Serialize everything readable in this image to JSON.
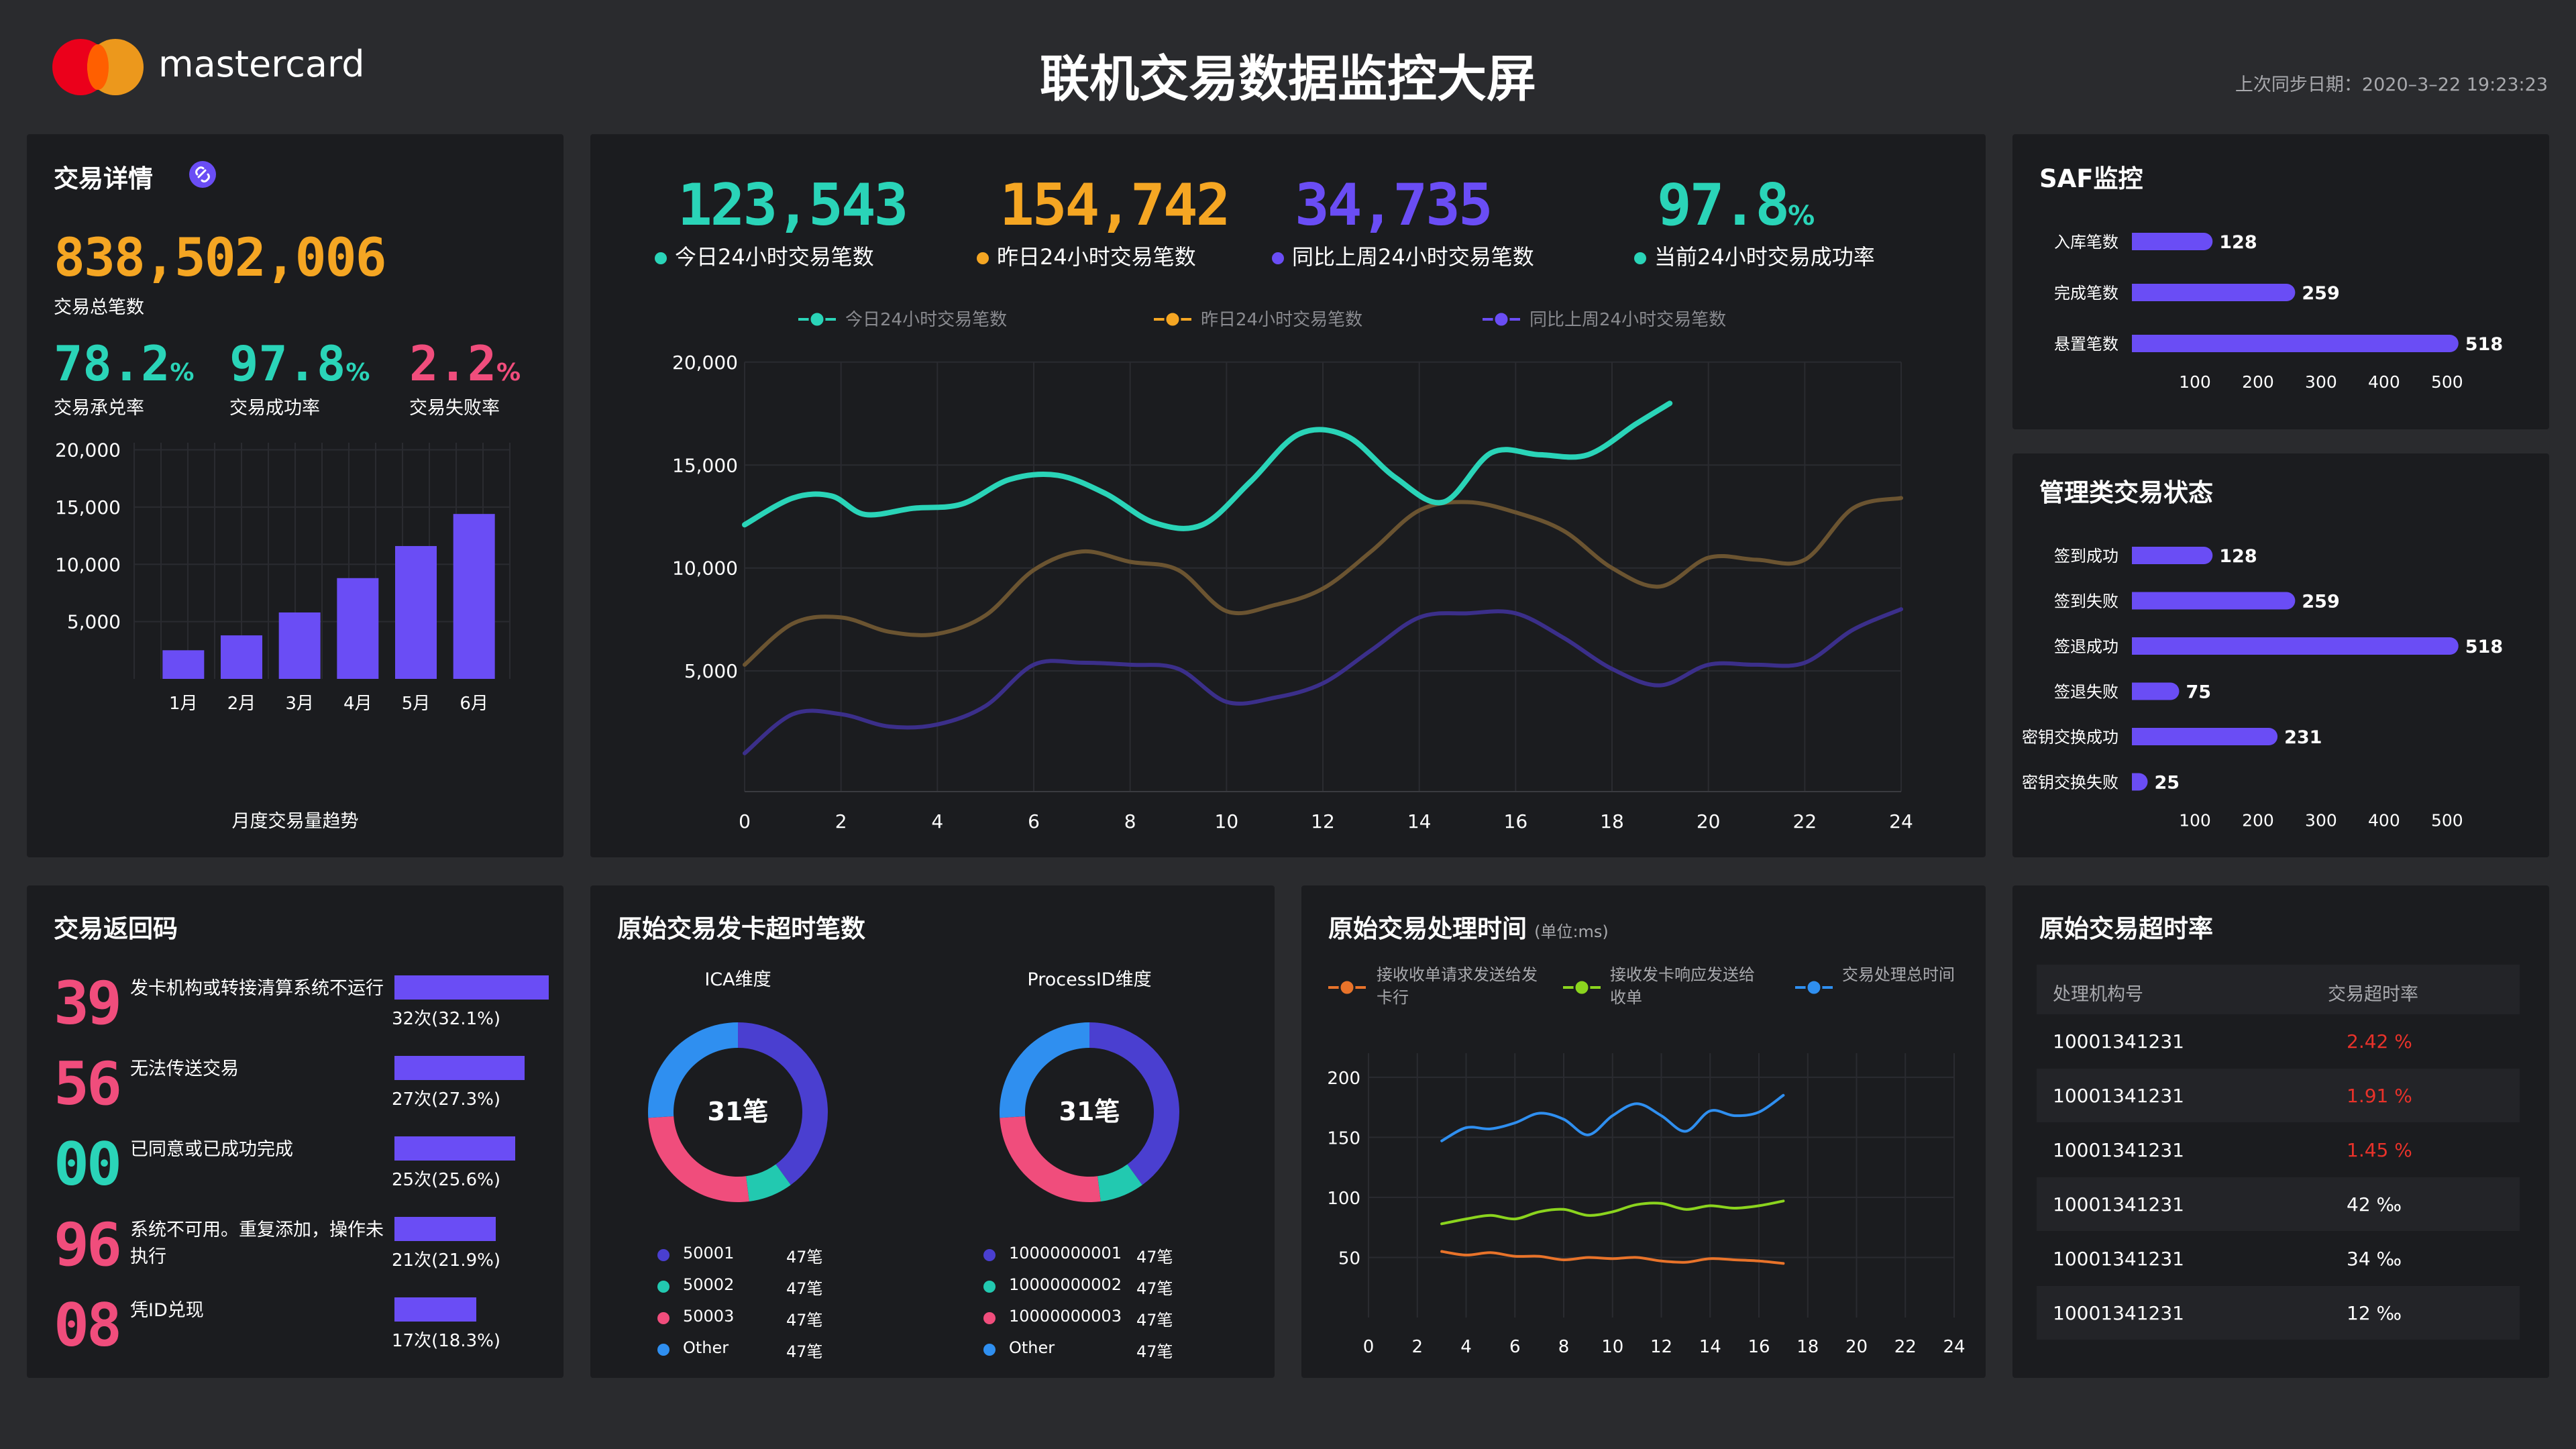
{
  "header": {
    "brand": "mastercard",
    "title": "联机交易数据监控大屏",
    "sync_label": "上次同步日期：",
    "sync_time": "2020–3–22 19:23:23",
    "colors": {
      "logo_red": "#eb001b",
      "logo_orange": "#f79e1b"
    }
  },
  "details": {
    "title": "交易详情",
    "total_value": "838,502,006",
    "total_label": "交易总笔数",
    "metrics": [
      {
        "value": "78.2",
        "unit": "%",
        "label": "交易承兑率",
        "color": "#2ad4b8"
      },
      {
        "value": "97.8",
        "unit": "%",
        "label": "交易成功率",
        "color": "#2ad4b8"
      },
      {
        "value": "2.2",
        "unit": "%",
        "label": "交易失败率",
        "color": "#f04d7c"
      }
    ]
  },
  "monthly_chart": {
    "caption": "月度交易量趋势",
    "chart_data": {
      "type": "bar",
      "categories": [
        "1月",
        "2月",
        "3月",
        "4月",
        "5月",
        "6月"
      ],
      "values": [
        2500,
        3800,
        5800,
        8800,
        11600,
        14400
      ],
      "yticks": [
        "20,000",
        "15,000",
        "10,000",
        "5,000"
      ],
      "ylim": [
        0,
        20000
      ]
    }
  },
  "kpis": [
    {
      "value": "123,543",
      "unit": "",
      "label": "今日24小时交易笔数",
      "color": "#2ad4b8"
    },
    {
      "value": "154,742",
      "unit": "",
      "label": "昨日24小时交易笔数",
      "color": "#f5a623"
    },
    {
      "value": "34,735",
      "unit": "",
      "label": "同比上周24小时交易笔数",
      "color": "#6a4df5"
    },
    {
      "value": "97.8",
      "unit": "%",
      "label": "当前24小时交易成功率",
      "color": "#2ad4b8"
    }
  ],
  "line_chart": {
    "legend": [
      "今日24小时交易笔数",
      "昨日24小时交易笔数",
      "同比上周24小时交易笔数"
    ],
    "chart_data": {
      "type": "line",
      "xticks": [
        "0",
        "2",
        "4",
        "6",
        "8",
        "10",
        "12",
        "14",
        "16",
        "18",
        "20",
        "22",
        "24"
      ],
      "yticks": [
        "20,000",
        "15,000",
        "10,000",
        "5,000"
      ],
      "xlim": [
        0,
        24
      ],
      "ylim": [
        0,
        20000
      ],
      "series": [
        {
          "name": "今日24小时交易笔数",
          "color": "#2ad4b8",
          "x": [
            0,
            1,
            1.8,
            2.5,
            3.5,
            4.5,
            5.5,
            6.5,
            7.5,
            8.5,
            9.5,
            10.5,
            11.5,
            12.5,
            13.5,
            14.5,
            15.5,
            16.5,
            17.5,
            18.5,
            19.2
          ],
          "y": [
            12100,
            13400,
            13500,
            12600,
            12900,
            13100,
            14300,
            14500,
            13600,
            12200,
            12100,
            14200,
            16500,
            16400,
            14400,
            13200,
            15600,
            15500,
            15500,
            17000,
            18000
          ]
        },
        {
          "name": "昨日24小时交易笔数",
          "color": "#6b5431",
          "x": [
            0,
            1,
            2,
            3,
            4,
            5,
            6,
            7,
            8,
            9,
            10,
            11,
            12,
            13,
            14,
            15,
            16,
            17,
            18,
            19,
            20,
            21,
            22,
            23,
            24
          ],
          "y": [
            5300,
            7300,
            7600,
            6900,
            6800,
            7700,
            9900,
            10800,
            10300,
            9900,
            7900,
            8200,
            9000,
            10800,
            12800,
            13200,
            12700,
            11800,
            10000,
            9100,
            10500,
            10400,
            10400,
            12900,
            13400
          ]
        },
        {
          "name": "同比上周24小时交易笔数",
          "color": "#3b2f8a",
          "x": [
            0,
            1,
            2,
            3,
            4,
            5,
            6,
            7,
            8,
            9,
            10,
            11,
            12,
            13,
            14,
            15,
            16,
            17,
            18,
            19,
            20,
            21,
            22,
            23,
            24
          ],
          "y": [
            1000,
            2900,
            2900,
            2300,
            2400,
            3300,
            5300,
            5400,
            5300,
            5100,
            3500,
            3700,
            4400,
            6000,
            7600,
            7800,
            7800,
            6600,
            5100,
            4300,
            5300,
            5300,
            5400,
            7000,
            8000
          ]
        }
      ]
    }
  },
  "saf": {
    "title": "SAF监控",
    "chart_data": {
      "type": "bar",
      "categories": [
        "入库笔数",
        "完成笔数",
        "悬置笔数"
      ],
      "values": [
        128,
        259,
        518
      ],
      "xticks": [
        "100",
        "200",
        "300",
        "400",
        "500"
      ],
      "xlim": [
        0,
        500
      ]
    }
  },
  "mgmt": {
    "title": "管理类交易状态",
    "chart_data": {
      "type": "bar",
      "categories": [
        "签到成功",
        "签到失败",
        "签退成功",
        "签退失败",
        "密钥交换成功",
        "密钥交换失败"
      ],
      "values": [
        128,
        259,
        518,
        75,
        231,
        25
      ],
      "xticks": [
        "100",
        "200",
        "300",
        "400",
        "500"
      ],
      "xlim": [
        0,
        500
      ]
    }
  },
  "return_codes": {
    "title": "交易返回码",
    "items": [
      {
        "code": "39",
        "desc": "发卡机构或转接清算系统不运行",
        "count": "32次(32.1%)",
        "value": 32
      },
      {
        "code": "56",
        "desc": "无法传送交易",
        "count": "27次(27.3%)",
        "value": 27
      },
      {
        "code": "00",
        "desc": "已同意或已成功完成",
        "count": "25次(25.6%)",
        "value": 25
      },
      {
        "code": "96",
        "desc": "系统不可用。重复添加，操作未执行",
        "count": "21次(21.9%)",
        "value": 21
      },
      {
        "code": "08",
        "desc": "凭ID兑现",
        "count": "17次(18.3%)",
        "value": 17
      }
    ],
    "colors": {
      "code_pink": "#f04d7c",
      "code_teal": "#2ad4b8"
    }
  },
  "timeouts": {
    "title": "原始交易发卡超时笔数",
    "charts": [
      {
        "title": "ICA维度",
        "center": "31笔",
        "legend": [
          {
            "name": "50001",
            "count": "47笔"
          },
          {
            "name": "50002",
            "count": "47笔"
          },
          {
            "name": "50003",
            "count": "47笔"
          },
          {
            "name": "Other",
            "count": "47笔"
          }
        ],
        "chart_data": {
          "type": "pie",
          "labels": [
            "50001",
            "50002",
            "50003",
            "Other"
          ],
          "values": [
            40,
            8,
            26,
            26
          ]
        }
      },
      {
        "title": "ProcessID维度",
        "center": "31笔",
        "legend": [
          {
            "name": "10000000001",
            "count": "47笔"
          },
          {
            "name": "10000000002",
            "count": "47笔"
          },
          {
            "name": "10000000003",
            "count": "47笔"
          },
          {
            "name": "Other",
            "count": "47笔"
          }
        ],
        "chart_data": {
          "type": "pie",
          "labels": [
            "10000000001",
            "10000000002",
            "10000000003",
            "Other"
          ],
          "values": [
            40,
            8,
            26,
            26
          ]
        }
      }
    ],
    "colors": [
      "#4a3fd0",
      "#22c9b0",
      "#f04d7c",
      "#2f8ff0"
    ]
  },
  "proc_time": {
    "title": "原始交易处理时间",
    "unit": "(单位:ms)",
    "legend": [
      "接收收单请求发送给发卡行",
      "接收发卡响应发送给收单",
      "交易处理总时间"
    ],
    "chart_data": {
      "type": "line",
      "xticks": [
        "0",
        "2",
        "4",
        "6",
        "8",
        "10",
        "12",
        "14",
        "16",
        "18",
        "20",
        "22",
        "24"
      ],
      "yticks": [
        "200",
        "150",
        "100",
        "50"
      ],
      "xlim": [
        0,
        24
      ],
      "ylim": [
        0,
        200
      ],
      "series": [
        {
          "name": "接收收单请求发送给发卡行",
          "color": "#e8732a",
          "x": [
            3,
            4,
            5,
            6,
            7,
            8,
            9,
            10,
            11,
            12,
            13,
            14,
            15,
            16,
            17
          ],
          "y": [
            55,
            52,
            54,
            51,
            51,
            48,
            50,
            49,
            50,
            47,
            46,
            49,
            48,
            47,
            45
          ]
        },
        {
          "name": "接收发卡响应发送给收单",
          "color": "#8bd41e",
          "x": [
            3,
            4,
            5,
            6,
            7,
            8,
            9,
            10,
            11,
            12,
            13,
            14,
            15,
            16,
            17
          ],
          "y": [
            78,
            82,
            85,
            82,
            88,
            90,
            85,
            88,
            94,
            95,
            90,
            93,
            91,
            93,
            97
          ]
        },
        {
          "name": "交易处理总时间",
          "color": "#2f8ff0",
          "x": [
            3,
            4,
            5,
            6,
            7,
            8,
            9,
            10,
            11,
            12,
            13,
            14,
            15,
            16,
            17
          ],
          "y": [
            147,
            158,
            157,
            162,
            170,
            165,
            152,
            168,
            178,
            168,
            155,
            172,
            168,
            171,
            185
          ]
        }
      ]
    }
  },
  "timeout_rate": {
    "title": "原始交易超时率",
    "headers": [
      "处理机构号",
      "交易超时率"
    ],
    "rows": [
      {
        "org": "10001341231",
        "rate": "2.42 %",
        "alert": true
      },
      {
        "org": "10001341231",
        "rate": "1.91 %",
        "alert": true
      },
      {
        "org": "10001341231",
        "rate": "1.45 %",
        "alert": true
      },
      {
        "org": "10001341231",
        "rate": "42 ‰",
        "alert": false
      },
      {
        "org": "10001341231",
        "rate": "34 ‰",
        "alert": false
      },
      {
        "org": "10001341231",
        "rate": "12 ‰",
        "alert": false
      }
    ],
    "colors": {
      "alert": "#e8322a"
    }
  }
}
